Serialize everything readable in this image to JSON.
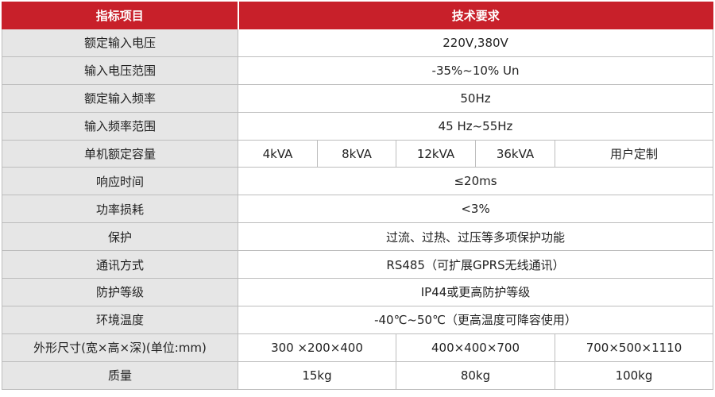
{
  "header": {
    "col1": "指标项目",
    "col2": "技术要求"
  },
  "rows": [
    {
      "label": "额定输入电压",
      "value": "220V,380V"
    },
    {
      "label": "输入电压范围",
      "value": "-35%~10% Un"
    },
    {
      "label": "额定输入频率",
      "value": "50Hz"
    },
    {
      "label": "输入频率范围",
      "value": "45 Hz~55Hz"
    },
    {
      "label": "单机额定容量",
      "values": [
        "4kVA",
        "8kVA",
        "12kVA",
        "36kVA",
        "用户定制"
      ]
    },
    {
      "label": "响应时间",
      "value": "≤20ms"
    },
    {
      "label": "功率损耗",
      "value": "<3%"
    },
    {
      "label": "保护",
      "value": "过流、过热、过压等多项保护功能"
    },
    {
      "label": "通讯方式",
      "value": "RS485（可扩展GPRS无线通讯）"
    },
    {
      "label": "防护等级",
      "value": "IP44或更高防护等级"
    },
    {
      "label": "环境温度",
      "value": "-40℃~50℃（更高温度可降容使用）"
    },
    {
      "label": "外形尺寸(宽×高×深)(单位:mm)",
      "values": [
        "300 ×200×400",
        "400×400×700",
        "700×500×1110"
      ]
    },
    {
      "label": "质量",
      "values": [
        "15kg",
        "80kg",
        "100kg"
      ]
    }
  ]
}
